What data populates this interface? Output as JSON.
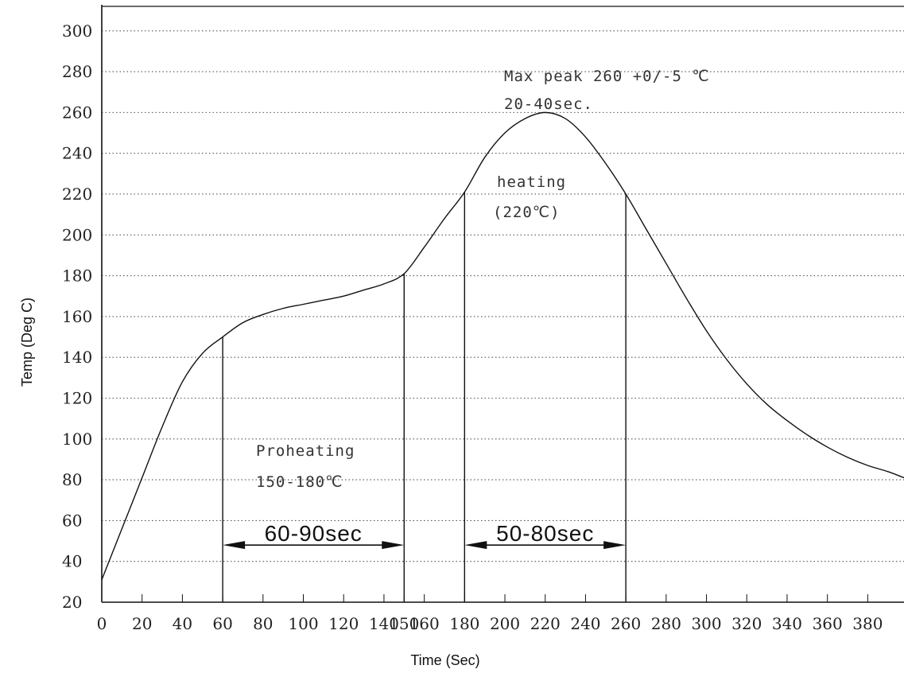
{
  "chart_data": {
    "type": "line",
    "xlabel": "Time (Sec)",
    "ylabel": "Temp (Deg C)",
    "xlim": [
      0,
      398
    ],
    "ylim": [
      20,
      312
    ],
    "grid": "horizontal dotted",
    "x_ticks": [
      0,
      20,
      40,
      60,
      80,
      100,
      120,
      140,
      150,
      160,
      180,
      200,
      220,
      240,
      260,
      280,
      300,
      320,
      340,
      360,
      380
    ],
    "y_ticks": [
      20,
      40,
      60,
      80,
      100,
      120,
      140,
      160,
      180,
      200,
      220,
      240,
      260,
      280,
      300
    ],
    "series": [
      {
        "x": [
          0,
          10,
          20,
          30,
          40,
          50,
          60,
          70,
          80,
          90,
          100,
          110,
          120,
          130,
          140,
          150,
          160,
          170,
          180,
          190,
          200,
          210,
          220,
          230,
          240,
          250,
          260,
          270,
          280,
          290,
          300,
          310,
          320,
          330,
          340,
          350,
          360,
          370,
          380,
          390,
          398
        ],
        "y": [
          31,
          56,
          81,
          106,
          128,
          142,
          150,
          157,
          161,
          164,
          166,
          168,
          170,
          173,
          176,
          181,
          194,
          208,
          221,
          238,
          250,
          257,
          260,
          257,
          248,
          235,
          220,
          203,
          186,
          169,
          153,
          139,
          127,
          117,
          109,
          102,
          96,
          91,
          87,
          84,
          81
        ]
      }
    ],
    "markers": [
      60,
      150,
      180,
      260
    ],
    "intervals": [
      {
        "from": 60,
        "to": 150,
        "label": "60-90sec",
        "y": 48
      },
      {
        "from": 180,
        "to": 260,
        "label": "50-80sec",
        "y": 48
      }
    ],
    "annotations": {
      "peak_line1": "Max peak 260 +0/-5 ℃",
      "peak_line2": "20-40sec.",
      "heating_line1": "heating",
      "heating_line2": "(220℃)",
      "preheat_line1": "Proheating",
      "preheat_line2": "150-180℃"
    }
  }
}
